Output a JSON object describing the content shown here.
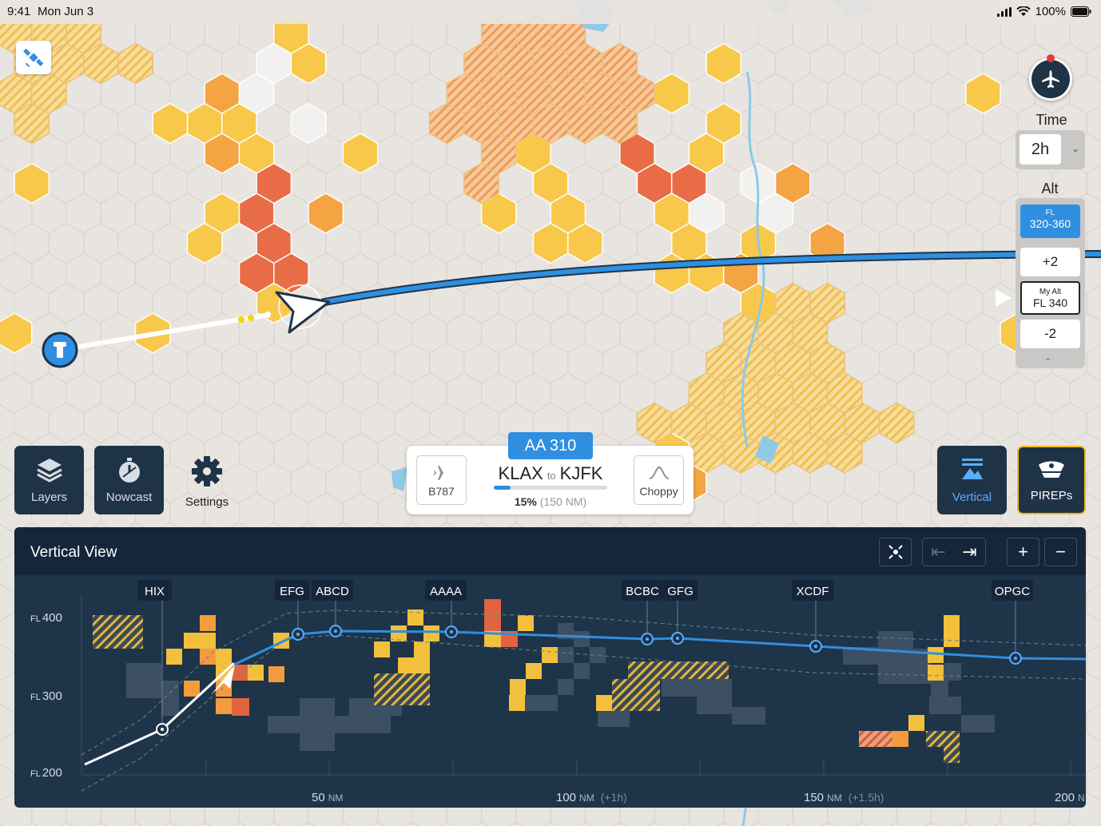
{
  "status_bar": {
    "time": "9:41",
    "date": "Mon Jun 3",
    "battery": "100%"
  },
  "map": {
    "compass_icon": "airplane-icon",
    "satellite_icon": "satellite-icon",
    "time_label": "Time",
    "time_value": "2h",
    "alt_label": "Alt",
    "alt_range_title": "FL",
    "alt_range_value": "320-360",
    "alt_plus": "+2",
    "my_alt_label": "My Alt",
    "my_alt_value": "FL 340",
    "alt_minus": "-2"
  },
  "toolbar": {
    "layers": "Layers",
    "nowcast": "Nowcast",
    "settings": "Settings",
    "vertical": "Vertical",
    "pireps": "PIREPs"
  },
  "flight": {
    "id": "AA 310",
    "aircraft": "B787",
    "origin": "KLAX",
    "to": "to",
    "destination": "KJFK",
    "progress_percent": "15%",
    "progress_fraction": 0.15,
    "progress_distance": "(150 NM)",
    "ride": "Choppy"
  },
  "vertical_view": {
    "title": "Vertical View",
    "y_labels": [
      {
        "prefix": "FL",
        "value": "400"
      },
      {
        "prefix": "FL",
        "value": "300"
      },
      {
        "prefix": "FL",
        "value": "200"
      }
    ],
    "x_labels": [
      {
        "value": "50",
        "unit": "NM",
        "extra": ""
      },
      {
        "value": "100",
        "unit": "NM",
        "extra": "(+1h)"
      },
      {
        "value": "150",
        "unit": "NM",
        "extra": "(+1.5h)"
      },
      {
        "value": "200",
        "unit": "N",
        "extra": ""
      }
    ],
    "waypoints": [
      "HIX",
      "EFG",
      "ABCD",
      "AAAA",
      "BCBC",
      "GFG",
      "XCDF",
      "OPGC"
    ]
  }
}
